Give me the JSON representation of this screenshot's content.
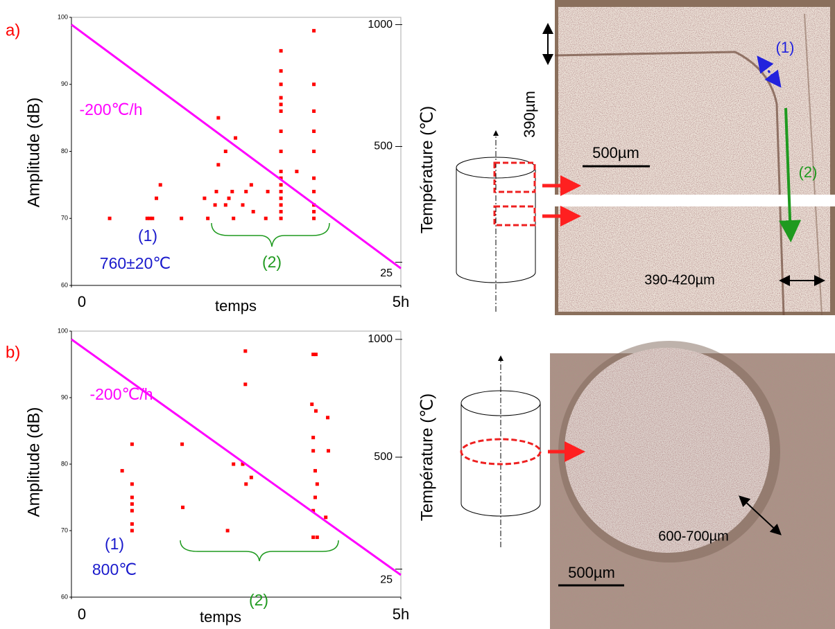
{
  "chart_data": [
    {
      "type": "scatter",
      "panel_label": "a)",
      "panel_color": "#ff0000",
      "ylabel": "Amplitude (dB)",
      "y2label": "Température (℃)",
      "xlabel": "temps",
      "xlim": [
        0,
        5
      ],
      "xticks": [
        0,
        {
          "value": 5,
          "label": "5h"
        }
      ],
      "ylim": [
        60,
        100
      ],
      "yticks": [
        60,
        70,
        80,
        90,
        100
      ],
      "y2lim": [
        -70,
        1030
      ],
      "y2ticks": [
        25,
        500,
        1000
      ],
      "series": [
        {
          "color": "#ff0000",
          "x": [
            0.58,
            1.15,
            1.19,
            1.23,
            1.29,
            1.35,
            1.67,
            2.02,
            2.07,
            2.18,
            2.2,
            2.23,
            2.23,
            2.34,
            2.34,
            2.39,
            2.44,
            2.46,
            2.49,
            2.6,
            2.65,
            2.73,
            2.76,
            2.95,
            2.98,
            3.18,
            3.18,
            3.18,
            3.18,
            3.18,
            3.18,
            3.18,
            3.18,
            3.18,
            3.18,
            3.18,
            3.18,
            3.18,
            3.18,
            3.18,
            3.18,
            3.42,
            3.68,
            3.68,
            3.68,
            3.68,
            3.68,
            3.68,
            3.68,
            3.68,
            3.68,
            3.68
          ],
          "values": [
            70,
            70,
            70,
            70,
            73,
            75,
            70,
            73,
            70,
            72,
            74,
            78,
            85,
            80,
            72,
            73,
            74,
            70,
            82,
            72,
            74,
            75,
            71,
            70,
            74,
            70,
            71,
            72,
            73,
            74,
            75,
            76,
            77,
            80,
            83,
            86,
            87,
            88,
            90,
            92,
            95,
            77,
            70,
            71,
            72,
            74,
            76,
            80,
            83,
            86,
            90,
            98
          ]
        },
        {
          "type": "line",
          "axis": "y2",
          "color": "#ff00ff",
          "x": [
            0,
            5
          ],
          "values": [
            1000,
            0
          ]
        }
      ],
      "annotations": [
        {
          "text": "-200℃/h",
          "color": "#ff00ff"
        },
        {
          "text": "(1)",
          "color": "#1a1acc"
        },
        {
          "text": "760±20℃",
          "color": "#1a1acc"
        },
        {
          "text": "(2)",
          "color": "#1f9a1f"
        }
      ]
    },
    {
      "type": "scatter",
      "panel_label": "b)",
      "panel_color": "#ff0000",
      "ylabel": "Amplitude (dB)",
      "y2label": "Température (℃)",
      "xlabel": "temps",
      "xlim": [
        0,
        5
      ],
      "xticks": [
        0,
        {
          "value": 5,
          "label": "5h"
        }
      ],
      "ylim": [
        60,
        100
      ],
      "yticks": [
        60,
        70,
        80,
        90,
        100
      ],
      "y2lim": [
        -94,
        1035
      ],
      "y2ticks": [
        25,
        500,
        1000
      ],
      "series": [
        {
          "color": "#ff0000",
          "x": [
            0.77,
            0.92,
            0.92,
            0.92,
            0.92,
            0.92,
            0.92,
            0.92,
            1.68,
            1.69,
            2.37,
            2.46,
            2.6,
            2.65,
            2.73,
            2.64,
            2.64,
            3.67,
            3.71,
            3.65,
            3.71,
            3.67,
            3.67,
            3.7,
            3.73,
            3.7,
            3.67,
            3.67,
            3.73,
            3.86,
            3.9,
            3.89
          ],
          "values": [
            79,
            83,
            77,
            75,
            74,
            73,
            71,
            70,
            83,
            73.5,
            70,
            80,
            80,
            77,
            78,
            92,
            97,
            96.5,
            96.5,
            89,
            88,
            84,
            82,
            79,
            77,
            75,
            73,
            69,
            69,
            72,
            82,
            87
          ]
        },
        {
          "type": "line",
          "axis": "y2",
          "color": "#ff00ff",
          "x": [
            0,
            5
          ],
          "values": [
            1000,
            0
          ]
        }
      ],
      "annotations": [
        {
          "text": "-200℃/h",
          "color": "#ff00ff"
        },
        {
          "text": "(1)",
          "color": "#1a1acc"
        },
        {
          "text": "800℃",
          "color": "#1a1acc"
        },
        {
          "text": "(2)",
          "color": "#1f9a1f"
        }
      ]
    }
  ],
  "images": {
    "a": [
      "390µm",
      "(1)",
      "500µm",
      "(2)",
      "390-420µm"
    ],
    "b": [
      "600-700µm",
      "500µm"
    ]
  }
}
